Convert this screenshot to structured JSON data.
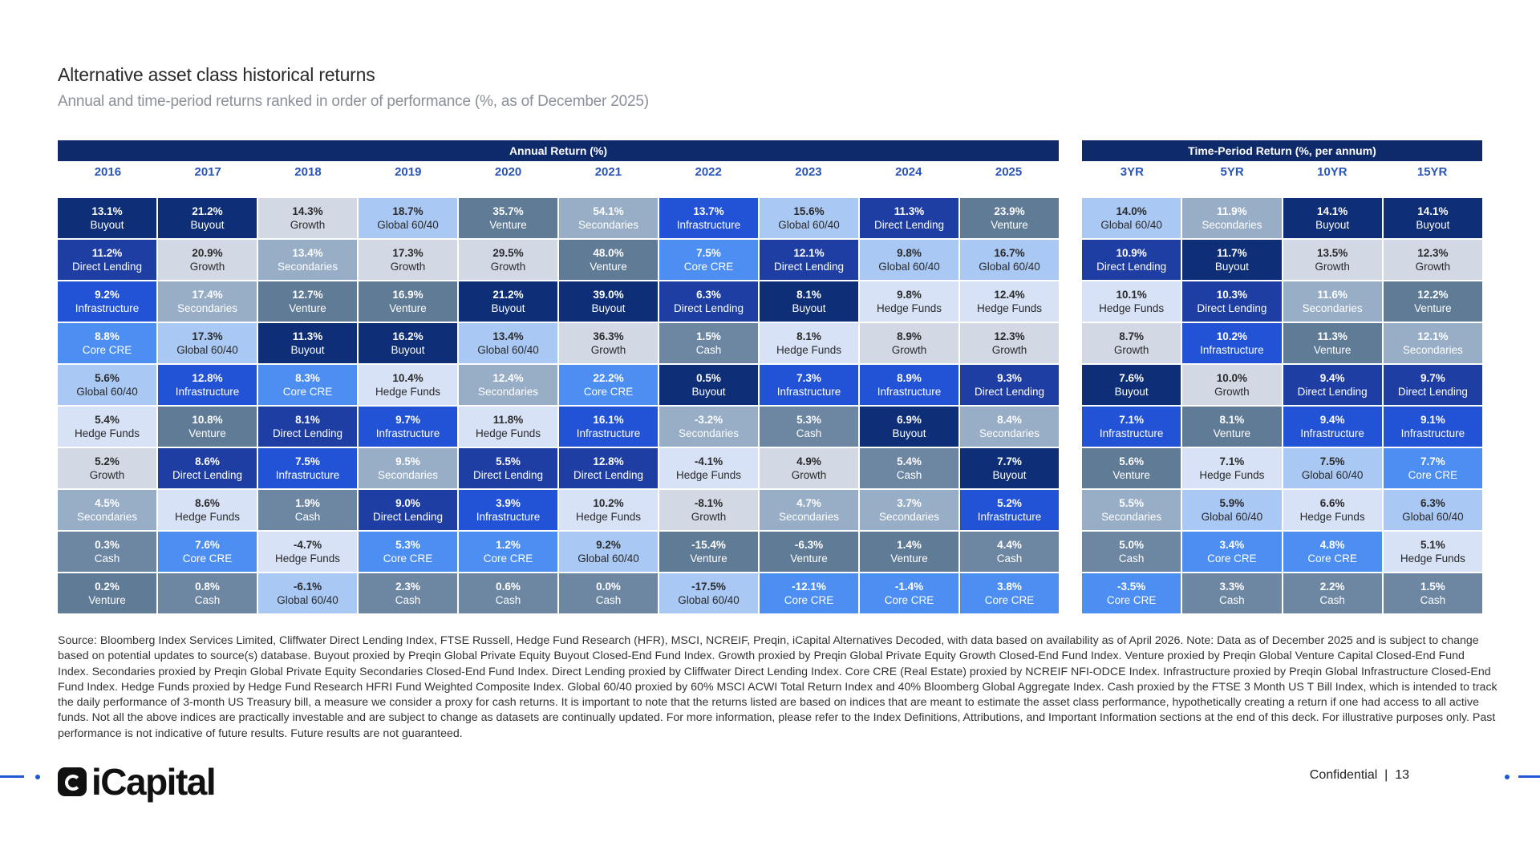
{
  "title": "Alternative asset class historical returns",
  "subtitle": "Annual and time-period returns ranked in order of performance (%, as of December 2025)",
  "colors": {
    "Buyout": "#0e2f78",
    "Growth": "#d2d9e5",
    "Venture": "#5f7b96",
    "Secondaries": "#98adc6",
    "Direct Lending": "#1e3ea3",
    "Infrastructure": "#2252d6",
    "Core CRE": "#4d8ef2",
    "Global 60/40": "#a9c8f4",
    "Hedge Funds": "#d7e2f7",
    "Cash": "#6d87a3"
  },
  "annual": {
    "header": "Annual Return (%)",
    "columns": [
      {
        "year": "2016",
        "cells": [
          {
            "value": "13.1%",
            "label": "Buyout"
          },
          {
            "value": "11.2%",
            "label": "Direct Lending"
          },
          {
            "value": "9.2%",
            "label": "Infrastructure"
          },
          {
            "value": "8.8%",
            "label": "Core CRE"
          },
          {
            "value": "5.6%",
            "label": "Global 60/40"
          },
          {
            "value": "5.4%",
            "label": "Hedge Funds"
          },
          {
            "value": "5.2%",
            "label": "Growth"
          },
          {
            "value": "4.5%",
            "label": "Secondaries"
          },
          {
            "value": "0.3%",
            "label": "Cash"
          },
          {
            "value": "0.2%",
            "label": "Venture"
          }
        ]
      },
      {
        "year": "2017",
        "cells": [
          {
            "value": "21.2%",
            "label": "Buyout"
          },
          {
            "value": "20.9%",
            "label": "Growth"
          },
          {
            "value": "17.4%",
            "label": "Secondaries"
          },
          {
            "value": "17.3%",
            "label": "Global 60/40"
          },
          {
            "value": "12.8%",
            "label": "Infrastructure"
          },
          {
            "value": "10.8%",
            "label": "Venture"
          },
          {
            "value": "8.6%",
            "label": "Direct Lending"
          },
          {
            "value": "8.6%",
            "label": "Hedge Funds"
          },
          {
            "value": "7.6%",
            "label": "Core CRE"
          },
          {
            "value": "0.8%",
            "label": "Cash"
          }
        ]
      },
      {
        "year": "2018",
        "cells": [
          {
            "value": "14.3%",
            "label": "Growth"
          },
          {
            "value": "13.4%",
            "label": "Secondaries"
          },
          {
            "value": "12.7%",
            "label": "Venture"
          },
          {
            "value": "11.3%",
            "label": "Buyout"
          },
          {
            "value": "8.3%",
            "label": "Core CRE"
          },
          {
            "value": "8.1%",
            "label": "Direct Lending"
          },
          {
            "value": "7.5%",
            "label": "Infrastructure"
          },
          {
            "value": "1.9%",
            "label": "Cash"
          },
          {
            "value": "-4.7%",
            "label": "Hedge Funds"
          },
          {
            "value": "-6.1%",
            "label": "Global 60/40"
          }
        ]
      },
      {
        "year": "2019",
        "cells": [
          {
            "value": "18.7%",
            "label": "Global 60/40"
          },
          {
            "value": "17.3%",
            "label": "Growth"
          },
          {
            "value": "16.9%",
            "label": "Venture"
          },
          {
            "value": "16.2%",
            "label": "Buyout"
          },
          {
            "value": "10.4%",
            "label": "Hedge Funds"
          },
          {
            "value": "9.7%",
            "label": "Infrastructure"
          },
          {
            "value": "9.5%",
            "label": "Secondaries"
          },
          {
            "value": "9.0%",
            "label": "Direct Lending"
          },
          {
            "value": "5.3%",
            "label": "Core CRE"
          },
          {
            "value": "2.3%",
            "label": "Cash"
          }
        ]
      },
      {
        "year": "2020",
        "cells": [
          {
            "value": "35.7%",
            "label": "Venture"
          },
          {
            "value": "29.5%",
            "label": "Growth"
          },
          {
            "value": "21.2%",
            "label": "Buyout"
          },
          {
            "value": "13.4%",
            "label": "Global 60/40"
          },
          {
            "value": "12.4%",
            "label": "Secondaries"
          },
          {
            "value": "11.8%",
            "label": "Hedge Funds"
          },
          {
            "value": "5.5%",
            "label": "Direct Lending"
          },
          {
            "value": "3.9%",
            "label": "Infrastructure"
          },
          {
            "value": "1.2%",
            "label": "Core CRE"
          },
          {
            "value": "0.6%",
            "label": "Cash"
          }
        ]
      },
      {
        "year": "2021",
        "cells": [
          {
            "value": "54.1%",
            "label": "Secondaries"
          },
          {
            "value": "48.0%",
            "label": "Venture"
          },
          {
            "value": "39.0%",
            "label": "Buyout"
          },
          {
            "value": "36.3%",
            "label": "Growth"
          },
          {
            "value": "22.2%",
            "label": "Core CRE"
          },
          {
            "value": "16.1%",
            "label": "Infrastructure"
          },
          {
            "value": "12.8%",
            "label": "Direct Lending"
          },
          {
            "value": "10.2%",
            "label": "Hedge Funds"
          },
          {
            "value": "9.2%",
            "label": "Global 60/40"
          },
          {
            "value": "0.0%",
            "label": "Cash"
          }
        ]
      },
      {
        "year": "2022",
        "cells": [
          {
            "value": "13.7%",
            "label": "Infrastructure"
          },
          {
            "value": "7.5%",
            "label": "Core CRE"
          },
          {
            "value": "6.3%",
            "label": "Direct Lending"
          },
          {
            "value": "1.5%",
            "label": "Cash"
          },
          {
            "value": "0.5%",
            "label": "Buyout"
          },
          {
            "value": "-3.2%",
            "label": "Secondaries"
          },
          {
            "value": "-4.1%",
            "label": "Hedge Funds"
          },
          {
            "value": "-8.1%",
            "label": "Growth"
          },
          {
            "value": "-15.4%",
            "label": "Venture"
          },
          {
            "value": "-17.5%",
            "label": "Global 60/40"
          }
        ]
      },
      {
        "year": "2023",
        "cells": [
          {
            "value": "15.6%",
            "label": "Global 60/40"
          },
          {
            "value": "12.1%",
            "label": "Direct Lending"
          },
          {
            "value": "8.1%",
            "label": "Buyout"
          },
          {
            "value": "8.1%",
            "label": "Hedge Funds"
          },
          {
            "value": "7.3%",
            "label": "Infrastructure"
          },
          {
            "value": "5.3%",
            "label": "Cash"
          },
          {
            "value": "4.9%",
            "label": "Growth"
          },
          {
            "value": "4.7%",
            "label": "Secondaries"
          },
          {
            "value": "-6.3%",
            "label": "Venture"
          },
          {
            "value": "-12.1%",
            "label": "Core CRE"
          }
        ]
      },
      {
        "year": "2024",
        "cells": [
          {
            "value": "11.3%",
            "label": "Direct Lending"
          },
          {
            "value": "9.8%",
            "label": "Global 60/40"
          },
          {
            "value": "9.8%",
            "label": "Hedge Funds"
          },
          {
            "value": "8.9%",
            "label": "Growth"
          },
          {
            "value": "8.9%",
            "label": "Infrastructure"
          },
          {
            "value": "6.9%",
            "label": "Buyout"
          },
          {
            "value": "5.4%",
            "label": "Cash"
          },
          {
            "value": "3.7%",
            "label": "Secondaries"
          },
          {
            "value": "1.4%",
            "label": "Venture"
          },
          {
            "value": "-1.4%",
            "label": "Core CRE"
          }
        ]
      },
      {
        "year": "2025",
        "cells": [
          {
            "value": "23.9%",
            "label": "Venture"
          },
          {
            "value": "16.7%",
            "label": "Global 60/40"
          },
          {
            "value": "12.4%",
            "label": "Hedge Funds"
          },
          {
            "value": "12.3%",
            "label": "Growth"
          },
          {
            "value": "9.3%",
            "label": "Direct Lending"
          },
          {
            "value": "8.4%",
            "label": "Secondaries"
          },
          {
            "value": "7.7%",
            "label": "Buyout"
          },
          {
            "value": "5.2%",
            "label": "Infrastructure"
          },
          {
            "value": "4.4%",
            "label": "Cash"
          },
          {
            "value": "3.8%",
            "label": "Core CRE"
          }
        ]
      }
    ]
  },
  "period": {
    "header": "Time-Period Return (%, per annum)",
    "columns": [
      {
        "year": "3YR",
        "cells": [
          {
            "value": "14.0%",
            "label": "Global 60/40"
          },
          {
            "value": "10.9%",
            "label": "Direct Lending"
          },
          {
            "value": "10.1%",
            "label": "Hedge Funds"
          },
          {
            "value": "8.7%",
            "label": "Growth"
          },
          {
            "value": "7.6%",
            "label": "Buyout"
          },
          {
            "value": "7.1%",
            "label": "Infrastructure"
          },
          {
            "value": "5.6%",
            "label": "Venture"
          },
          {
            "value": "5.5%",
            "label": "Secondaries"
          },
          {
            "value": "5.0%",
            "label": "Cash"
          },
          {
            "value": "-3.5%",
            "label": "Core CRE"
          }
        ]
      },
      {
        "year": "5YR",
        "cells": [
          {
            "value": "11.9%",
            "label": "Secondaries"
          },
          {
            "value": "11.7%",
            "label": "Buyout"
          },
          {
            "value": "10.3%",
            "label": "Direct Lending"
          },
          {
            "value": "10.2%",
            "label": "Infrastructure"
          },
          {
            "value": "10.0%",
            "label": "Growth"
          },
          {
            "value": "8.1%",
            "label": "Venture"
          },
          {
            "value": "7.1%",
            "label": "Hedge Funds"
          },
          {
            "value": "5.9%",
            "label": "Global 60/40"
          },
          {
            "value": "3.4%",
            "label": "Core CRE"
          },
          {
            "value": "3.3%",
            "label": "Cash"
          }
        ]
      },
      {
        "year": "10YR",
        "cells": [
          {
            "value": "14.1%",
            "label": "Buyout"
          },
          {
            "value": "13.5%",
            "label": "Growth"
          },
          {
            "value": "11.6%",
            "label": "Secondaries"
          },
          {
            "value": "11.3%",
            "label": "Venture"
          },
          {
            "value": "9.4%",
            "label": "Direct Lending"
          },
          {
            "value": "9.4%",
            "label": "Infrastructure"
          },
          {
            "value": "7.5%",
            "label": "Global 60/40"
          },
          {
            "value": "6.6%",
            "label": "Hedge Funds"
          },
          {
            "value": "4.8%",
            "label": "Core CRE"
          },
          {
            "value": "2.2%",
            "label": "Cash"
          }
        ]
      },
      {
        "year": "15YR",
        "cells": [
          {
            "value": "14.1%",
            "label": "Buyout"
          },
          {
            "value": "12.3%",
            "label": "Growth"
          },
          {
            "value": "12.2%",
            "label": "Venture"
          },
          {
            "value": "12.1%",
            "label": "Secondaries"
          },
          {
            "value": "9.7%",
            "label": "Direct Lending"
          },
          {
            "value": "9.1%",
            "label": "Infrastructure"
          },
          {
            "value": "7.7%",
            "label": "Core CRE"
          },
          {
            "value": "6.3%",
            "label": "Global 60/40"
          },
          {
            "value": "5.1%",
            "label": "Hedge Funds"
          },
          {
            "value": "1.5%",
            "label": "Cash"
          }
        ]
      }
    ]
  },
  "source": "Source: Bloomberg Index Services Limited, Cliffwater Direct Lending Index, FTSE Russell, Hedge Fund Research (HFR), MSCI, NCREIF, Preqin, iCapital Alternatives Decoded, with data based on availability as of April 2026. Note: Data as of December 2025 and is subject to change based on potential updates to source(s) database. Buyout proxied by Preqin Global Private Equity Buyout Closed-End Fund Index. Growth proxied by Preqin Global Private Equity Growth Closed-End Fund Index. Venture proxied by Preqin Global Venture Capital Closed-End Fund Index. Secondaries proxied by Preqin Global Private Equity Secondaries Closed-End Fund Index. Direct Lending proxied by Cliffwater Direct Lending Index. Core CRE (Real Estate) proxied by NCREIF NFI-ODCE Index. Infrastructure proxied by Preqin Global Infrastructure Closed-End Fund Index. Hedge Funds proxied by Hedge Fund Research HFRI Fund Weighted Composite Index. Global 60/40 proxied by 60% MSCI ACWI Total Return Index and 40% Bloomberg Global Aggregate Index. Cash proxied by the FTSE 3 Month US T Bill Index, which is intended to track the daily performance of 3-month US Treasury bill, a measure we consider a proxy for cash returns. It is important to note that the returns listed are based on indices that are meant to estimate the asset class performance, hypothetically creating a return if one had access to all active funds. Not all the above indices are practically investable and are subject to change as datasets are continually updated. For more information, please refer to the Index Definitions, Attributions, and Important Information sections at the end of this deck. For illustrative purposes only. Past performance is not indicative of future results. Future results are not guaranteed.",
  "footer": {
    "logo_text": "iCapital",
    "confidential": "Confidential  |  13"
  }
}
